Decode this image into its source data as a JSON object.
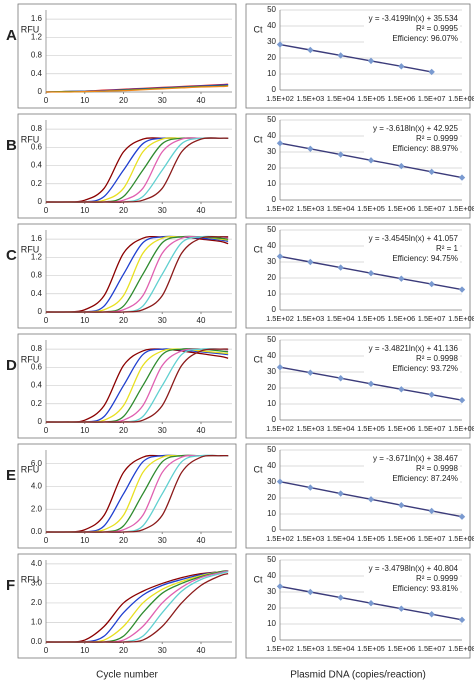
{
  "panels": [
    "A",
    "B",
    "C",
    "D",
    "E",
    "F"
  ],
  "x_label_left": "Cycle number",
  "x_label_right": "Plasmid DNA (copies/reaction)",
  "chart_data": [
    {
      "type": "line",
      "y_label": "RFU",
      "x": [
        0,
        5,
        10,
        15,
        20,
        25,
        30,
        35,
        40,
        45,
        47
      ],
      "xlim": [
        0,
        48
      ],
      "xticks": [
        0,
        10,
        20,
        30,
        40
      ],
      "ylim": [
        0,
        1.8
      ],
      "yticks": [
        0,
        0.4,
        0.8,
        1.2,
        1.6
      ],
      "grid": true,
      "series": [
        {
          "color": "#e01c1c",
          "values": [
            0,
            0.01,
            0.02,
            0.04,
            0.06,
            0.08,
            0.1,
            0.12,
            0.14,
            0.16,
            0.17
          ]
        },
        {
          "color": "#1f3fd0",
          "values": [
            0,
            0.01,
            0.02,
            0.03,
            0.05,
            0.07,
            0.09,
            0.11,
            0.13,
            0.15,
            0.16
          ]
        },
        {
          "color": "#2e8b2e",
          "values": [
            0,
            0.01,
            0.01,
            0.02,
            0.04,
            0.06,
            0.08,
            0.1,
            0.12,
            0.13,
            0.14
          ]
        },
        {
          "color": "#f08a1a",
          "values": [
            0,
            0,
            0.01,
            0.02,
            0.03,
            0.05,
            0.07,
            0.09,
            0.11,
            0.12,
            0.13
          ]
        }
      ]
    },
    {
      "type": "line",
      "y_label": "Ct",
      "categories": [
        "1.5E+02",
        "1.5E+03",
        "1.5E+04",
        "1.5E+05",
        "1.5E+06",
        "1.5E+07",
        "1.5E+08"
      ],
      "ylim": [
        0,
        50
      ],
      "yticks": [
        0,
        10,
        20,
        30,
        40,
        50
      ],
      "grid": true,
      "annotation": [
        "y = -3.4199ln(x) + 35.534",
        "R² = 0.9995",
        "Efficiency: 96.07%"
      ],
      "series": [
        {
          "color": "#7a9ad0",
          "line_color": "#3b3b7a",
          "values": [
            28.4,
            25.0,
            21.6,
            18.2,
            14.8,
            11.3,
            null
          ]
        }
      ]
    },
    {
      "type": "line",
      "y_label": "RFU",
      "x": [
        0,
        5,
        10,
        15,
        20,
        25,
        30,
        35,
        40,
        45,
        47
      ],
      "xlim": [
        0,
        48
      ],
      "xticks": [
        0,
        10,
        20,
        30,
        40
      ],
      "ylim": [
        0,
        0.9
      ],
      "yticks": [
        0,
        0.2,
        0.4,
        0.6,
        0.8
      ],
      "grid": true,
      "series": [
        {
          "color": "#8b0000",
          "values": [
            0,
            0,
            0.02,
            0.15,
            0.55,
            0.69,
            0.7,
            0.7,
            0.7,
            0.7,
            0.7
          ]
        },
        {
          "color": "#1f3fd0",
          "values": [
            0,
            0,
            0,
            0.06,
            0.35,
            0.64,
            0.7,
            0.7,
            0.7,
            0.7,
            0.7
          ]
        },
        {
          "color": "#e8e020",
          "values": [
            0,
            0,
            0,
            0.02,
            0.15,
            0.55,
            0.69,
            0.7,
            0.7,
            0.7,
            0.7
          ]
        },
        {
          "color": "#2e8b2e",
          "values": [
            0,
            0,
            0,
            0,
            0.06,
            0.35,
            0.64,
            0.7,
            0.7,
            0.7,
            0.7
          ]
        },
        {
          "color": "#e060b0",
          "values": [
            0,
            0,
            0,
            0,
            0.02,
            0.15,
            0.55,
            0.69,
            0.7,
            0.7,
            0.7
          ]
        },
        {
          "color": "#60d0d0",
          "values": [
            0,
            0,
            0,
            0,
            0,
            0.06,
            0.35,
            0.64,
            0.7,
            0.7,
            0.7
          ]
        },
        {
          "color": "#8b1a1a",
          "values": [
            0,
            0,
            0,
            0,
            0,
            0.02,
            0.15,
            0.55,
            0.69,
            0.7,
            0.7
          ]
        }
      ]
    },
    {
      "type": "line",
      "y_label": "Ct",
      "categories": [
        "1.5E+02",
        "1.5E+03",
        "1.5E+04",
        "1.5E+05",
        "1.5E+06",
        "1.5E+07",
        "1.5E+08"
      ],
      "ylim": [
        0,
        50
      ],
      "yticks": [
        0,
        10,
        20,
        30,
        40,
        50
      ],
      "grid": true,
      "annotation": [
        "y = -3.618ln(x) + 42.925",
        "R² = 0.9999",
        "Efficiency: 88.97%"
      ],
      "series": [
        {
          "color": "#7a9ad0",
          "line_color": "#3b3b7a",
          "values": [
            35.5,
            32.0,
            28.4,
            24.8,
            21.2,
            17.6,
            14.0
          ]
        }
      ]
    },
    {
      "type": "line",
      "y_label": "RFU",
      "x": [
        0,
        5,
        10,
        15,
        20,
        25,
        30,
        35,
        40,
        45,
        47
      ],
      "xlim": [
        0,
        48
      ],
      "xticks": [
        0,
        10,
        20,
        30,
        40
      ],
      "ylim": [
        0,
        1.8
      ],
      "yticks": [
        0,
        0.4,
        0.8,
        1.2,
        1.6
      ],
      "grid": true,
      "series": [
        {
          "color": "#8b0000",
          "values": [
            0,
            0,
            0.05,
            0.36,
            1.29,
            1.62,
            1.65,
            1.65,
            1.6,
            1.55,
            1.5
          ]
        },
        {
          "color": "#1f3fd0",
          "values": [
            0,
            0,
            0,
            0.13,
            0.83,
            1.52,
            1.65,
            1.65,
            1.62,
            1.58,
            1.55
          ]
        },
        {
          "color": "#e8e020",
          "values": [
            0,
            0,
            0,
            0.05,
            0.36,
            1.29,
            1.62,
            1.65,
            1.65,
            1.6,
            1.58
          ]
        },
        {
          "color": "#2e8b2e",
          "values": [
            0,
            0,
            0,
            0,
            0.13,
            0.83,
            1.52,
            1.65,
            1.65,
            1.62,
            1.6
          ]
        },
        {
          "color": "#e060b0",
          "values": [
            0,
            0,
            0,
            0,
            0.05,
            0.36,
            1.29,
            1.62,
            1.65,
            1.65,
            1.62
          ]
        },
        {
          "color": "#60d0d0",
          "values": [
            0,
            0,
            0,
            0,
            0,
            0.13,
            0.83,
            1.52,
            1.65,
            1.65,
            1.65
          ]
        },
        {
          "color": "#8b1a1a",
          "values": [
            0,
            0,
            0,
            0,
            0,
            0.05,
            0.36,
            1.29,
            1.62,
            1.65,
            1.65
          ]
        }
      ]
    },
    {
      "type": "line",
      "y_label": "Ct",
      "categories": [
        "1.5E+02",
        "1.5E+03",
        "1.5E+04",
        "1.5E+05",
        "1.5E+06",
        "1.5E+07",
        "1.5E+08"
      ],
      "ylim": [
        0,
        50
      ],
      "yticks": [
        0,
        10,
        20,
        30,
        40,
        50
      ],
      "grid": true,
      "annotation": [
        "y = -3.4545ln(x) + 41.057",
        "R² = 1",
        "Efficiency: 94.75%"
      ],
      "series": [
        {
          "color": "#7a9ad0",
          "line_color": "#3b3b7a",
          "values": [
            33.5,
            30.0,
            26.5,
            23.0,
            19.6,
            16.2,
            12.8
          ]
        }
      ]
    },
    {
      "type": "line",
      "y_label": "RFU",
      "x": [
        0,
        5,
        10,
        15,
        20,
        25,
        30,
        35,
        40,
        45,
        47
      ],
      "xlim": [
        0,
        48
      ],
      "xticks": [
        0,
        10,
        20,
        30,
        40
      ],
      "ylim": [
        0,
        0.9
      ],
      "yticks": [
        0,
        0.2,
        0.4,
        0.6,
        0.8
      ],
      "grid": true,
      "series": [
        {
          "color": "#8b0000",
          "values": [
            0,
            0,
            0.02,
            0.18,
            0.62,
            0.78,
            0.8,
            0.78,
            0.75,
            0.72,
            0.7
          ]
        },
        {
          "color": "#1f3fd0",
          "values": [
            0,
            0,
            0,
            0.06,
            0.4,
            0.74,
            0.8,
            0.79,
            0.77,
            0.75,
            0.74
          ]
        },
        {
          "color": "#e8e020",
          "values": [
            0,
            0,
            0,
            0.02,
            0.18,
            0.62,
            0.78,
            0.8,
            0.78,
            0.76,
            0.75
          ]
        },
        {
          "color": "#2e8b2e",
          "values": [
            0,
            0,
            0,
            0,
            0.06,
            0.4,
            0.74,
            0.8,
            0.8,
            0.78,
            0.77
          ]
        },
        {
          "color": "#e060b0",
          "values": [
            0,
            0,
            0,
            0,
            0.02,
            0.18,
            0.62,
            0.78,
            0.8,
            0.8,
            0.79
          ]
        },
        {
          "color": "#60d0d0",
          "values": [
            0,
            0,
            0,
            0,
            0,
            0.06,
            0.4,
            0.74,
            0.8,
            0.8,
            0.8
          ]
        },
        {
          "color": "#8b1a1a",
          "values": [
            0,
            0,
            0,
            0,
            0,
            0.02,
            0.18,
            0.62,
            0.78,
            0.8,
            0.8
          ]
        }
      ]
    },
    {
      "type": "line",
      "y_label": "Ct",
      "categories": [
        "1.5E+02",
        "1.5E+03",
        "1.5E+04",
        "1.5E+05",
        "1.5E+06",
        "1.5E+07",
        "1.5E+08"
      ],
      "ylim": [
        0,
        50
      ],
      "yticks": [
        0,
        10,
        20,
        30,
        40,
        50
      ],
      "grid": true,
      "annotation": [
        "y = -3.4821ln(x) + 41.136",
        "R² = 0.9998",
        "Efficiency: 93.72%"
      ],
      "series": [
        {
          "color": "#7a9ad0",
          "line_color": "#3b3b7a",
          "values": [
            33.0,
            29.6,
            26.1,
            22.6,
            19.2,
            15.8,
            12.4
          ]
        }
      ]
    },
    {
      "type": "line",
      "y_label": "RFU",
      "x": [
        0,
        5,
        10,
        15,
        20,
        25,
        30,
        35,
        40,
        45,
        47
      ],
      "xlim": [
        0,
        48
      ],
      "xticks": [
        0,
        10,
        20,
        30,
        40
      ],
      "ylim": [
        0,
        7.2
      ],
      "yticks": [
        {
          "value": 0,
          "label": "0.0"
        },
        {
          "value": 2,
          "label": "2.0"
        },
        {
          "value": 4,
          "label": "4.0"
        },
        {
          "value": 6,
          "label": "6.0"
        }
      ],
      "grid": true,
      "series": [
        {
          "color": "#8b0000",
          "values": [
            0,
            0,
            0.2,
            1.47,
            5.23,
            6.57,
            6.7,
            6.7,
            6.7,
            6.7,
            6.7
          ]
        },
        {
          "color": "#1f3fd0",
          "values": [
            0,
            0,
            0,
            0.54,
            3.35,
            6.16,
            6.7,
            6.7,
            6.7,
            6.7,
            6.7
          ]
        },
        {
          "color": "#e8e020",
          "values": [
            0,
            0,
            0,
            0.2,
            1.47,
            5.23,
            6.57,
            6.7,
            6.7,
            6.7,
            6.7
          ]
        },
        {
          "color": "#2e8b2e",
          "values": [
            0,
            0,
            0,
            0,
            0.54,
            3.35,
            6.16,
            6.7,
            6.7,
            6.7,
            6.7
          ]
        },
        {
          "color": "#e060b0",
          "values": [
            0,
            0,
            0,
            0,
            0.2,
            1.47,
            5.23,
            6.57,
            6.7,
            6.7,
            6.7
          ]
        },
        {
          "color": "#60d0d0",
          "values": [
            0,
            0,
            0,
            0,
            0,
            0.54,
            3.35,
            6.16,
            6.7,
            6.7,
            6.7
          ]
        },
        {
          "color": "#8b1a1a",
          "values": [
            0,
            0,
            0,
            0,
            0,
            0.2,
            1.47,
            5.23,
            6.57,
            6.7,
            6.7
          ]
        }
      ]
    },
    {
      "type": "line",
      "y_label": "Ct",
      "categories": [
        "1.5E+02",
        "1.5E+03",
        "1.5E+04",
        "1.5E+05",
        "1.5E+06",
        "1.5E+07",
        "1.5E+08"
      ],
      "ylim": [
        0,
        50
      ],
      "yticks": [
        0,
        10,
        20,
        30,
        40,
        50
      ],
      "grid": true,
      "annotation": [
        "y = -3.671ln(x) + 38.467",
        "R² = 0.9998",
        "Efficiency: 87.24%"
      ],
      "series": [
        {
          "color": "#7a9ad0",
          "line_color": "#3b3b7a",
          "values": [
            30.2,
            26.5,
            22.8,
            19.2,
            15.5,
            11.9,
            8.3
          ]
        }
      ]
    },
    {
      "type": "line",
      "y_label": "RFU",
      "x": [
        0,
        5,
        10,
        15,
        20,
        25,
        30,
        35,
        40,
        45,
        47
      ],
      "xlim": [
        0,
        48
      ],
      "xticks": [
        0,
        10,
        20,
        30,
        40
      ],
      "ylim": [
        0,
        4.2
      ],
      "yticks": [
        {
          "value": 0,
          "label": "0.0"
        },
        {
          "value": 1,
          "label": "1.0"
        },
        {
          "value": 2,
          "label": "2.0"
        },
        {
          "value": 3,
          "label": "3.0"
        },
        {
          "value": 4,
          "label": "4.0"
        }
      ],
      "grid": true,
      "series": [
        {
          "color": "#8b0000",
          "values": [
            0,
            0,
            0.1,
            0.8,
            2.0,
            2.6,
            3.0,
            3.3,
            3.5,
            3.6,
            3.65
          ]
        },
        {
          "color": "#1f3fd0",
          "values": [
            0,
            0,
            0,
            0.3,
            1.5,
            2.4,
            2.9,
            3.2,
            3.45,
            3.6,
            3.65
          ]
        },
        {
          "color": "#e8e020",
          "values": [
            0,
            0,
            0,
            0.1,
            0.8,
            2.0,
            2.7,
            3.1,
            3.4,
            3.6,
            3.65
          ]
        },
        {
          "color": "#2e8b2e",
          "values": [
            0,
            0,
            0,
            0,
            0.3,
            1.5,
            2.5,
            3.0,
            3.35,
            3.6,
            3.65
          ]
        },
        {
          "color": "#e060b0",
          "values": [
            0,
            0,
            0,
            0,
            0.1,
            0.8,
            2.0,
            2.8,
            3.3,
            3.55,
            3.65
          ]
        },
        {
          "color": "#60d0d0",
          "values": [
            0,
            0,
            0,
            0,
            0,
            0.3,
            1.5,
            2.6,
            3.2,
            3.5,
            3.6
          ]
        },
        {
          "color": "#8b1a1a",
          "values": [
            0,
            0,
            0,
            0,
            0,
            0.1,
            0.8,
            2.0,
            2.9,
            3.4,
            3.5
          ]
        }
      ]
    },
    {
      "type": "line",
      "y_label": "Ct",
      "categories": [
        "1.5E+02",
        "1.5E+03",
        "1.5E+04",
        "1.5E+05",
        "1.5E+06",
        "1.5E+07",
        "1.5E+08"
      ],
      "ylim": [
        0,
        50
      ],
      "yticks": [
        0,
        10,
        20,
        30,
        40,
        50
      ],
      "grid": true,
      "annotation": [
        "y = -3.4798ln(x) + 40.804",
        "R² = 0.9999",
        "Efficiency: 93.81%"
      ],
      "series": [
        {
          "color": "#7a9ad0",
          "line_color": "#3b3b7a",
          "values": [
            33.5,
            30.0,
            26.5,
            23.0,
            19.6,
            16.1,
            12.6
          ]
        }
      ]
    }
  ]
}
